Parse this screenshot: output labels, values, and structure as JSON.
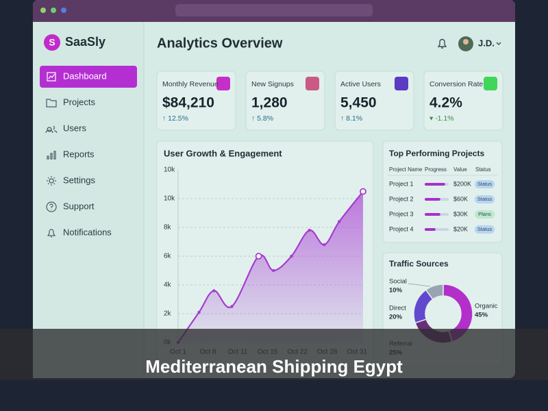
{
  "sidebar": {
    "brand": "SaaSly",
    "nav": [
      "Dashboard",
      "Projects",
      "Users",
      "Reports",
      "Settings",
      "Support",
      "Notifications"
    ],
    "active": 0
  },
  "header": {
    "title": "Analytics Overview",
    "user": "J.D."
  },
  "kpis": [
    {
      "label": "Monthly Revenue",
      "value": "$84,210",
      "change": "↑ 12.5%"
    },
    {
      "label": "New Signups",
      "value": "1,280",
      "change": "↑ 5.8%"
    },
    {
      "label": "Active Users",
      "value": "5,450",
      "change": "↑ 8.1%"
    },
    {
      "label": "Conversion Rate",
      "value": "4.2%",
      "change": "▾ -1.1%"
    }
  ],
  "chart_data": [
    {
      "type": "line",
      "title": "User Growth & Engagement",
      "color": "#a63ccf",
      "x": [
        0,
        0.7,
        1.2,
        1.8,
        2.7,
        3.2,
        3.8,
        4.4,
        4.9,
        5.4,
        6.2
      ],
      "values": [
        0,
        2100,
        3600,
        2500,
        6000,
        5000,
        6000,
        7800,
        6800,
        8400,
        10500
      ],
      "highlight": [
        4,
        10
      ],
      "xlim": [
        0,
        6.2
      ],
      "xticks": [
        {
          "value": 0,
          "label": "Oct 1"
        },
        {
          "value": 1,
          "label": "Oct 8"
        },
        {
          "value": 2,
          "label": "Oct 11"
        },
        {
          "value": 3,
          "label": "Oct 15"
        },
        {
          "value": 4,
          "label": "Oct 22"
        },
        {
          "value": 5,
          "label": "Oct 28"
        },
        {
          "value": 6,
          "label": "Oct 31"
        }
      ],
      "ylim": [
        0,
        12000
      ],
      "yticks": [
        {
          "value": 0,
          "label": "0k"
        },
        {
          "value": 2000,
          "label": "2k"
        },
        {
          "value": 4000,
          "label": "4k"
        },
        {
          "value": 6000,
          "label": "6k"
        },
        {
          "value": 8000,
          "label": "8k"
        },
        {
          "value": 10000,
          "label": "10k"
        }
      ],
      "y_top_label": "10k",
      "grid": true
    },
    {
      "type": "pie",
      "title": "Traffic Sources",
      "categories": [
        "Organic",
        "Referral",
        "Direct",
        "Social"
      ],
      "values": [
        45,
        25,
        20,
        10
      ],
      "value_labels": [
        "45%",
        "25%",
        "20%",
        "10%"
      ],
      "colors": [
        "#b32fca",
        "#6a2f78",
        "#6248cf",
        "#9aa3b2"
      ]
    }
  ],
  "projects": {
    "title": "Top Performing Projects",
    "columns": [
      "Project Name",
      "Progress",
      "Value",
      "Status"
    ],
    "progress_lim": [
      0,
      100
    ],
    "rows": [
      {
        "name": "Project 1",
        "progress": 85,
        "value": "$200K",
        "status": "Status",
        "status_color": "#b9d4ee"
      },
      {
        "name": "Project 2",
        "progress": 65,
        "value": "$60K",
        "status": "Status",
        "status_color": "#b9d4ee"
      },
      {
        "name": "Project 3",
        "progress": 65,
        "value": "$30K",
        "status": "Plans",
        "status_color": "#bfe8c8"
      },
      {
        "name": "Project 4",
        "progress": 45,
        "value": "$20K",
        "status": "Status",
        "status_color": "#b9d4ee"
      }
    ]
  },
  "caption": "Mediterranean Shipping Egypt"
}
